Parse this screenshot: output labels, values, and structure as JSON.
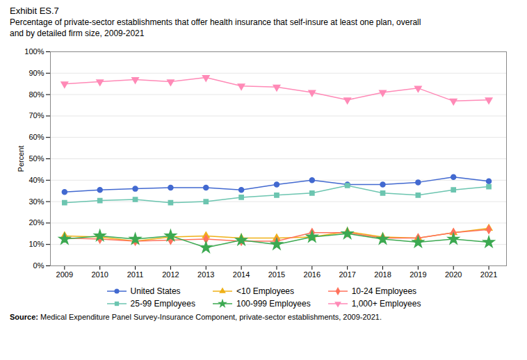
{
  "chart_data": {
    "type": "line",
    "title": "Exhibit ES.7",
    "subtitle": "Percentage of private-sector establishments that offer health insurance that self-insure at least one plan, overall\nand by detailed firm size, 2009-2021",
    "source_label": "Source:",
    "source": " Medical Expenditure Panel Survey-Insurance Component, private-sector establishments, 2009-2021.",
    "y_label": "Percent",
    "x": [
      2009,
      2010,
      2011,
      2012,
      2013,
      2014,
      2015,
      2016,
      2017,
      2018,
      2019,
      2020,
      2021
    ],
    "series": [
      {
        "name": "United States",
        "marker": "circle",
        "values": [
          34.5,
          35.5,
          36.0,
          36.5,
          36.5,
          35.5,
          38.0,
          40.0,
          38.0,
          38.0,
          39.0,
          41.5,
          39.5
        ]
      },
      {
        "name": "<10 Employees",
        "marker": "triangle-up",
        "values": [
          14.0,
          13.5,
          11.5,
          13.5,
          14.0,
          13.0,
          13.0,
          13.5,
          16.0,
          13.5,
          13.0,
          15.5,
          17.5
        ]
      },
      {
        "name": "10-24 Employees",
        "marker": "diamond",
        "values": [
          13.0,
          12.5,
          11.5,
          12.0,
          12.5,
          11.5,
          11.5,
          15.5,
          15.5,
          13.0,
          13.0,
          15.5,
          17.0
        ]
      },
      {
        "name": "25-99 Employees",
        "marker": "square",
        "values": [
          29.5,
          30.5,
          31.0,
          29.5,
          30.0,
          32.0,
          33.0,
          34.0,
          37.5,
          34.0,
          33.0,
          35.5,
          37.0
        ]
      },
      {
        "name": "100-999 Employees",
        "marker": "star",
        "values": [
          12.5,
          14.0,
          12.5,
          14.0,
          8.5,
          12.0,
          10.0,
          13.5,
          15.0,
          12.5,
          11.0,
          12.5,
          11.0
        ]
      },
      {
        "name": "1,000+ Employees",
        "marker": "triangle-down",
        "values": [
          85.0,
          86.0,
          87.0,
          86.0,
          88.0,
          84.0,
          83.5,
          81.0,
          77.5,
          81.0,
          83.0,
          77.0,
          77.5
        ]
      }
    ],
    "xlim": [
      2008.6,
      2021.5
    ],
    "xticks": [
      2009,
      2010,
      2011,
      2012,
      2013,
      2014,
      2015,
      2016,
      2017,
      2018,
      2019,
      2020,
      2021
    ],
    "ylim": [
      0,
      100
    ],
    "yticks": [
      {
        "value": 0,
        "label": "0%"
      },
      {
        "value": 10,
        "label": "10%"
      },
      {
        "value": 20,
        "label": "20%"
      },
      {
        "value": 30,
        "label": "30%"
      },
      {
        "value": 40,
        "label": "40%"
      },
      {
        "value": 50,
        "label": "50%"
      },
      {
        "value": 60,
        "label": "60%"
      },
      {
        "value": 70,
        "label": "70%"
      },
      {
        "value": 80,
        "label": "80%"
      },
      {
        "value": 90,
        "label": "90%"
      },
      {
        "value": 100,
        "label": "100%"
      }
    ],
    "grid": true,
    "legend": "bottom"
  }
}
